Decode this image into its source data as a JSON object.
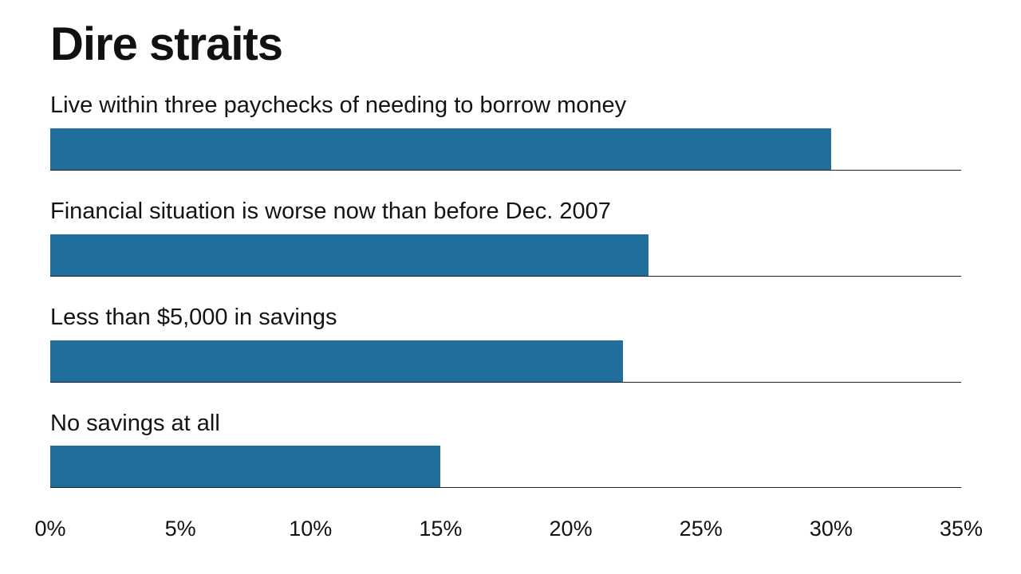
{
  "title": "Dire straits",
  "chart_data": {
    "type": "bar",
    "orientation": "horizontal",
    "title": "Dire straits",
    "categories": [
      "Live within three paychecks of needing to borrow money",
      "Financial situation is worse now than before Dec. 2007",
      "Less than $5,000 in savings",
      "No savings at all"
    ],
    "values": [
      30,
      23,
      22,
      15
    ],
    "unit": "%",
    "xlabel": "",
    "ylabel": "",
    "xlim": [
      0,
      35
    ],
    "x_ticks": [
      "0%",
      "5%",
      "10%",
      "15%",
      "20%",
      "25%",
      "30%",
      "35%"
    ],
    "bar_color": "#1f6e9c",
    "grid": "baseline-per-bar",
    "legend": "none"
  }
}
